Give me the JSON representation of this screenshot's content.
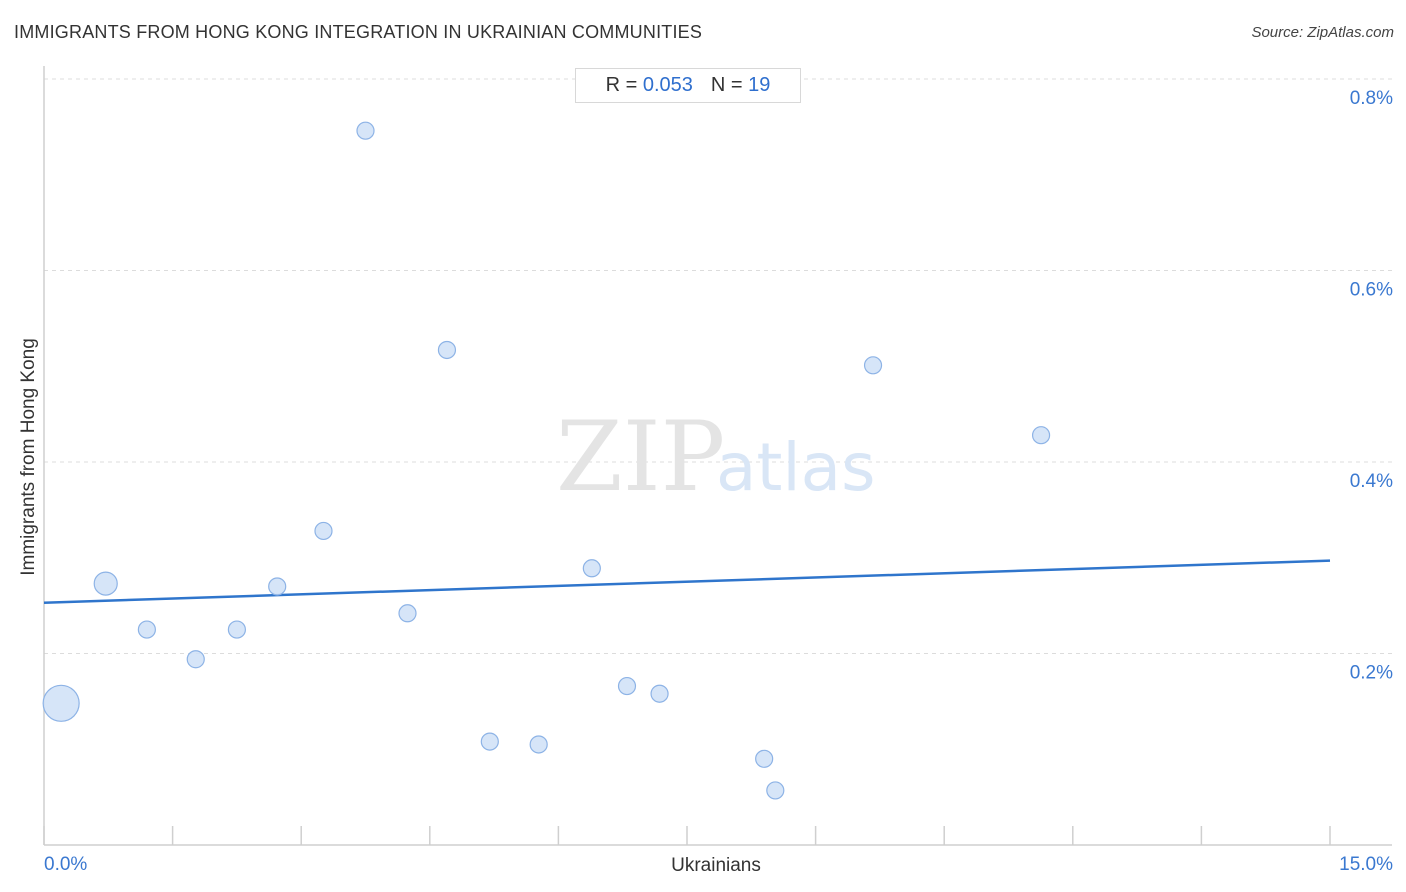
{
  "header": {
    "title": "IMMIGRANTS FROM HONG KONG INTEGRATION IN UKRAINIAN COMMUNITIES",
    "source": "Source: ZipAtlas.com"
  },
  "stats": {
    "r_label": "R =",
    "r_value": "0.053",
    "n_label": "N =",
    "n_value": "19"
  },
  "watermark": {
    "zip": "ZIP",
    "atlas": "atlas"
  },
  "colors": {
    "accent": "#2f6fce",
    "point_fill": "#cfe0f7",
    "point_stroke": "#8db3e6",
    "trend": "#2f75cc"
  },
  "chart_data": {
    "type": "scatter",
    "title": "IMMIGRANTS FROM HONG KONG INTEGRATION IN UKRAINIAN COMMUNITIES",
    "xlabel": "Ukrainians",
    "ylabel": "Immigrants from Hong Kong",
    "xlim": [
      0,
      15
    ],
    "ylim": [
      0,
      0.8
    ],
    "x_tick_labels": [
      "0.0%",
      "15.0%"
    ],
    "y_ticks": [
      0.2,
      0.4,
      0.6,
      0.8
    ],
    "y_tick_labels": [
      "0.2%",
      "0.4%",
      "0.6%",
      "0.8%"
    ],
    "grid": true,
    "points": [
      {
        "x": 0.2,
        "y": 0.148,
        "size": 3
      },
      {
        "x": 0.72,
        "y": 0.273,
        "size": 2
      },
      {
        "x": 1.2,
        "y": 0.225,
        "size": 1
      },
      {
        "x": 1.77,
        "y": 0.194,
        "size": 1
      },
      {
        "x": 2.25,
        "y": 0.225,
        "size": 1
      },
      {
        "x": 2.72,
        "y": 0.27,
        "size": 1
      },
      {
        "x": 3.26,
        "y": 0.328,
        "size": 1
      },
      {
        "x": 3.75,
        "y": 0.746,
        "size": 1
      },
      {
        "x": 4.24,
        "y": 0.242,
        "size": 1
      },
      {
        "x": 4.7,
        "y": 0.517,
        "size": 1
      },
      {
        "x": 5.2,
        "y": 0.108,
        "size": 1
      },
      {
        "x": 5.77,
        "y": 0.105,
        "size": 1
      },
      {
        "x": 6.39,
        "y": 0.289,
        "size": 1
      },
      {
        "x": 6.8,
        "y": 0.166,
        "size": 1
      },
      {
        "x": 7.18,
        "y": 0.158,
        "size": 1
      },
      {
        "x": 8.4,
        "y": 0.09,
        "size": 1
      },
      {
        "x": 8.53,
        "y": 0.057,
        "size": 1
      },
      {
        "x": 9.67,
        "y": 0.501,
        "size": 1
      },
      {
        "x": 11.63,
        "y": 0.428,
        "size": 1
      }
    ],
    "trendline": {
      "x": [
        0,
        15
      ],
      "y": [
        0.253,
        0.297
      ]
    }
  }
}
